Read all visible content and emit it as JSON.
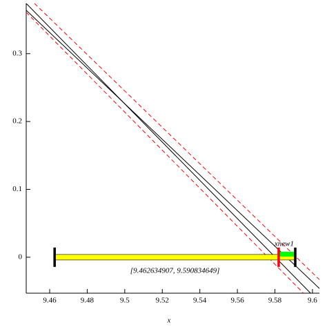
{
  "chart_data": {
    "type": "line",
    "x_label": "x",
    "xlim": [
      9.4475,
      9.6037
    ],
    "ylim": [
      -0.053,
      0.374
    ],
    "xticks": [
      9.46,
      9.48,
      9.5,
      9.52,
      9.54,
      9.56,
      9.58,
      9.6
    ],
    "yticks": [
      0,
      0.1,
      0.2,
      0.3
    ],
    "series": [
      {
        "color": "#000000",
        "dash": false,
        "x": [
          9.4475,
          9.599
        ],
        "values": [
          0.374,
          -0.053
        ]
      },
      {
        "color": "#000000",
        "dash": false,
        "x": [
          9.4475,
          9.6037
        ],
        "values": [
          0.364,
          -0.046
        ]
      },
      {
        "color": "#ff0000",
        "dash": true,
        "x": [
          9.4519,
          9.6037
        ],
        "values": [
          0.374,
          -0.033
        ]
      },
      {
        "color": "#ff0000",
        "dash": true,
        "x": [
          9.4475,
          9.5952
        ],
        "values": [
          0.361,
          -0.053
        ]
      }
    ],
    "interval": {
      "y": 0,
      "left": 9.462634907,
      "right": 9.590834649,
      "label": "[9.462634907, 9.590834649]",
      "xnew": 9.582,
      "xnew_label": "xnew1",
      "color": "#ffff00",
      "new_color": "#00ff00",
      "new_cap_color": "#ff0000"
    }
  }
}
